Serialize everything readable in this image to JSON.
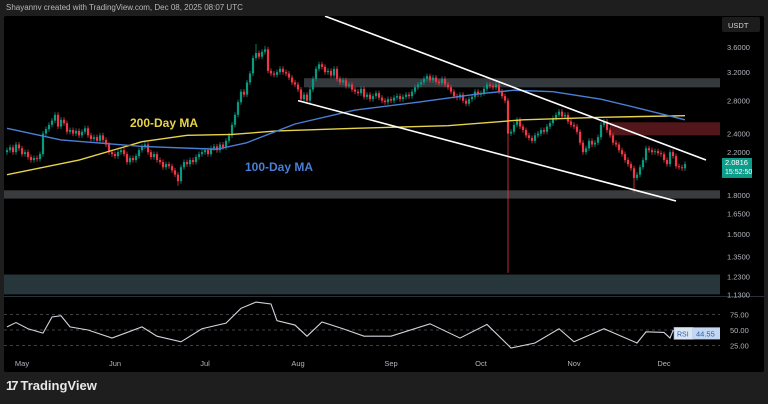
{
  "header": {
    "credit": "Shayannv created with TradingView.com, Dec 08, 2025 08:07 UTC"
  },
  "footer": {
    "logo_mark": "17",
    "logo_text": "TradingView"
  },
  "colors": {
    "up": "#089981",
    "down": "#f23645",
    "ma200": "#e6d34a",
    "ma100": "#4a7fd6",
    "trendline": "#ffffff",
    "rsi": "#d0d4dc",
    "last_price": "#0e9d8a"
  },
  "chart_data": {
    "type": "candlestick",
    "scale": "log",
    "currency_label": "USDT",
    "y_ticks": [
      "3.6000",
      "3.2000",
      "2.8000",
      "2.4000",
      "2.2000",
      "1.8000",
      "1.6500",
      "1.5000",
      "1.3500",
      "1.2300",
      "1.1300"
    ],
    "x_ticks": [
      {
        "label": "May",
        "date": "2025-05-01"
      },
      {
        "label": "Jun",
        "date": "2025-06-01"
      },
      {
        "label": "Jul",
        "date": "2025-07-01"
      },
      {
        "label": "Aug",
        "date": "2025-08-01"
      },
      {
        "label": "Sep",
        "date": "2025-09-01"
      },
      {
        "label": "Oct",
        "date": "2025-10-01"
      },
      {
        "label": "Nov",
        "date": "2025-11-01"
      },
      {
        "label": "Dec",
        "date": "2025-12-01"
      }
    ],
    "last_price": {
      "value": "2.0816",
      "countdown": "15:52:50"
    },
    "first_open": 2.2,
    "candles": [
      {
        "month": "2025-04",
        "first_day": 26,
        "closes": [
          2.22,
          2.25,
          2.2,
          2.28,
          2.24
        ]
      },
      {
        "month": "2025-05",
        "first_day": 1,
        "closes": [
          2.18,
          2.2,
          2.15,
          2.12,
          2.14,
          2.13,
          2.18,
          2.4,
          2.45,
          2.5,
          2.55,
          2.62,
          2.48,
          2.56,
          2.52,
          2.42,
          2.44,
          2.4,
          2.43,
          2.38,
          2.42,
          2.46,
          2.38,
          2.34,
          2.36,
          2.32,
          2.38,
          2.33,
          2.28,
          2.2,
          2.18
        ]
      },
      {
        "month": "2025-06",
        "first_day": 1,
        "closes": [
          2.16,
          2.2,
          2.22,
          2.18,
          2.1,
          2.14,
          2.12,
          2.16,
          2.22,
          2.26,
          2.28,
          2.2,
          2.15,
          2.18,
          2.12,
          2.1,
          2.05,
          2.08,
          2.06,
          2.02,
          1.98,
          1.92,
          2.05,
          2.1,
          2.08,
          2.12,
          2.1,
          2.15,
          2.18,
          2.2
        ]
      },
      {
        "month": "2025-07",
        "first_day": 1,
        "closes": [
          2.22,
          2.18,
          2.24,
          2.26,
          2.22,
          2.28,
          2.25,
          2.32,
          2.38,
          2.5,
          2.62,
          2.78,
          2.92,
          2.88,
          3.05,
          3.18,
          3.42,
          3.5,
          3.44,
          3.52,
          3.56,
          3.22,
          3.18,
          3.16,
          3.2,
          3.25,
          3.2,
          3.18,
          3.12,
          3.05,
          3.02
        ]
      },
      {
        "month": "2025-08",
        "first_day": 1,
        "closes": [
          2.95,
          2.82,
          2.88,
          2.8,
          2.95,
          3.1,
          3.25,
          3.32,
          3.28,
          3.2,
          3.22,
          3.15,
          3.25,
          3.1,
          3.05,
          3.08,
          3.0,
          3.02,
          2.95,
          2.92,
          2.9,
          2.96,
          2.85,
          2.88,
          2.82,
          2.86,
          2.9,
          2.84,
          2.8,
          2.78,
          2.82
        ]
      },
      {
        "month": "2025-09",
        "first_day": 1,
        "closes": [
          2.8,
          2.84,
          2.86,
          2.82,
          2.85,
          2.88,
          2.86,
          2.92,
          2.98,
          3.02,
          3.05,
          3.1,
          3.14,
          3.08,
          3.12,
          3.06,
          3.04,
          3.1,
          3.02,
          2.98,
          2.92,
          2.86,
          2.84,
          2.88,
          2.8,
          2.76,
          2.82,
          2.85,
          2.92,
          2.88
        ]
      },
      {
        "month": "2025-10",
        "first_day": 1,
        "closes": [
          2.9,
          2.96,
          3.02,
          3.0,
          2.98,
          3.02,
          2.92,
          2.86,
          2.8,
          2.4,
          2.42,
          2.5,
          2.56,
          2.48,
          2.44,
          2.38,
          2.35,
          2.32,
          2.38,
          2.4,
          2.44,
          2.42,
          2.48,
          2.52,
          2.58,
          2.62,
          2.66,
          2.6,
          2.62,
          2.54,
          2.5
        ]
      },
      {
        "month": "2025-11",
        "first_day": 1,
        "closes": [
          2.48,
          2.42,
          2.3,
          2.2,
          2.24,
          2.32,
          2.28,
          2.3,
          2.36,
          2.5,
          2.54,
          2.44,
          2.38,
          2.3,
          2.28,
          2.22,
          2.18,
          2.12,
          2.08,
          2.04,
          1.95,
          1.98,
          2.05,
          2.12,
          2.24,
          2.22,
          2.2,
          2.21,
          2.19,
          2.18
        ]
      },
      {
        "month": "2025-12",
        "first_day": 1,
        "closes": [
          2.12,
          2.08,
          2.2,
          2.16,
          2.06,
          2.05,
          2.04,
          2.0816
        ]
      }
    ],
    "wick_extremes": [
      {
        "date": "2025-07-18",
        "high": 3.65
      },
      {
        "date": "2025-07-21",
        "high": 3.62
      },
      {
        "date": "2025-10-10",
        "low": 1.25
      },
      {
        "date": "2025-11-21",
        "low": 1.82
      },
      {
        "date": "2025-06-22",
        "low": 1.88
      }
    ],
    "moving_averages": [
      {
        "name": "200-Day MA",
        "color": "#e6d34a",
        "points": [
          [
            "2025-04-26",
            1.98
          ],
          [
            "2025-05-20",
            2.12
          ],
          [
            "2025-06-10",
            2.31
          ],
          [
            "2025-06-25",
            2.38
          ],
          [
            "2025-07-10",
            2.39
          ],
          [
            "2025-07-25",
            2.43
          ],
          [
            "2025-08-20",
            2.46
          ],
          [
            "2025-09-20",
            2.49
          ],
          [
            "2025-10-15",
            2.56
          ],
          [
            "2025-11-10",
            2.59
          ],
          [
            "2025-12-08",
            2.61
          ]
        ]
      },
      {
        "name": "100-Day MA",
        "color": "#4a7fd6",
        "points": [
          [
            "2025-04-26",
            2.46
          ],
          [
            "2025-05-14",
            2.33
          ],
          [
            "2025-06-10",
            2.26
          ],
          [
            "2025-07-05",
            2.23
          ],
          [
            "2025-07-15",
            2.3
          ],
          [
            "2025-07-31",
            2.51
          ],
          [
            "2025-08-20",
            2.68
          ],
          [
            "2025-09-10",
            2.78
          ],
          [
            "2025-09-30",
            2.89
          ],
          [
            "2025-10-12",
            2.94
          ],
          [
            "2025-10-25",
            2.92
          ],
          [
            "2025-11-10",
            2.82
          ],
          [
            "2025-11-25",
            2.68
          ],
          [
            "2025-12-08",
            2.56
          ]
        ]
      }
    ],
    "trendlines": [
      {
        "name": "upper",
        "from": [
          "2025-08-10",
          4.16
        ],
        "to": [
          "2025-12-15",
          2.12
        ]
      },
      {
        "name": "lower",
        "from": [
          "2025-08-01",
          2.8
        ],
        "to": [
          "2025-12-05",
          1.75
        ]
      }
    ],
    "zones": [
      {
        "name": "resistance-zone",
        "from_price": 2.98,
        "to_price": 3.11,
        "start": "2025-08-04",
        "color": "#3a3f44"
      },
      {
        "name": "supply-zone",
        "from_price": 2.38,
        "to_price": 2.53,
        "start": "2025-11-14",
        "color": "#5a1a1e"
      },
      {
        "name": "support-zone",
        "from_price": 1.77,
        "to_price": 1.84,
        "start": "2025-04-26",
        "color": "#3f4144"
      },
      {
        "name": "demand-zone",
        "from_price": 1.13,
        "to_price": 1.24,
        "start": "2025-04-26",
        "color": "#2a3c40"
      }
    ],
    "rsi": {
      "label": "RSI",
      "value": "44.55",
      "ticks": [
        "75.00",
        "50.00",
        "25.00"
      ],
      "levels": [
        75,
        50,
        25
      ],
      "points": [
        [
          "2025-04-26",
          55
        ],
        [
          "2025-04-29",
          62
        ],
        [
          "2025-05-03",
          52
        ],
        [
          "2025-05-08",
          45
        ],
        [
          "2025-05-11",
          71
        ],
        [
          "2025-05-14",
          73
        ],
        [
          "2025-05-17",
          55
        ],
        [
          "2025-05-23",
          50
        ],
        [
          "2025-05-31",
          37
        ],
        [
          "2025-06-10",
          55
        ],
        [
          "2025-06-15",
          40
        ],
        [
          "2025-06-23",
          31
        ],
        [
          "2025-06-30",
          52
        ],
        [
          "2025-07-08",
          61
        ],
        [
          "2025-07-13",
          85
        ],
        [
          "2025-07-18",
          95
        ],
        [
          "2025-07-23",
          92
        ],
        [
          "2025-07-25",
          65
        ],
        [
          "2025-07-31",
          58
        ],
        [
          "2025-08-04",
          40
        ],
        [
          "2025-08-09",
          63
        ],
        [
          "2025-08-16",
          52
        ],
        [
          "2025-08-23",
          40
        ],
        [
          "2025-09-01",
          40
        ],
        [
          "2025-09-14",
          60
        ],
        [
          "2025-09-24",
          37
        ],
        [
          "2025-10-03",
          59
        ],
        [
          "2025-10-11",
          21
        ],
        [
          "2025-10-19",
          29
        ],
        [
          "2025-10-27",
          52
        ],
        [
          "2025-11-01",
          31
        ],
        [
          "2025-11-11",
          52
        ],
        [
          "2025-11-22",
          29
        ],
        [
          "2025-11-25",
          47
        ],
        [
          "2025-12-01",
          46
        ],
        [
          "2025-12-03",
          37
        ],
        [
          "2025-12-04",
          49
        ],
        [
          "2025-12-08",
          44.55
        ]
      ]
    }
  }
}
